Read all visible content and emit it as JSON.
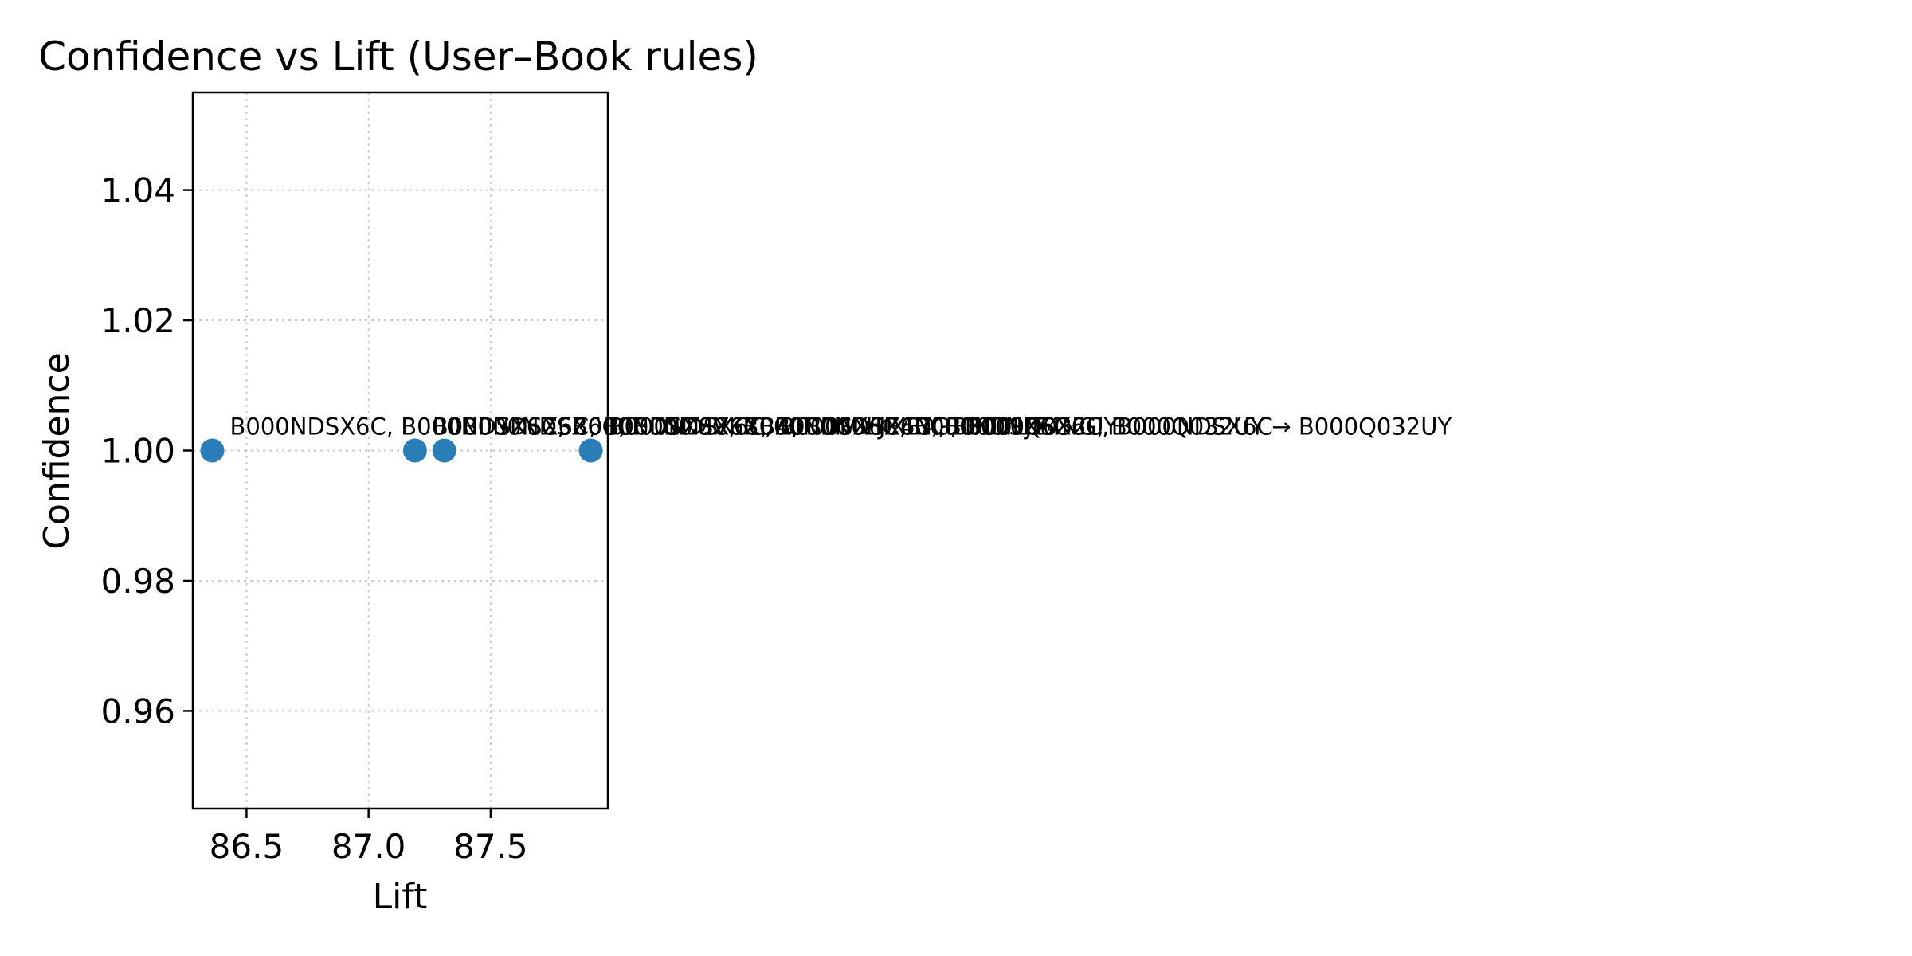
{
  "chart_data": {
    "type": "scatter",
    "title": "Confidence vs Lift (User–Book rules)",
    "xlabel": "Lift",
    "ylabel": "Confidence",
    "xlim": [
      86.28,
      87.98
    ],
    "ylim": [
      0.945,
      1.055
    ],
    "xticks": [
      86.5,
      87.0,
      87.5
    ],
    "xtick_labels": [
      "86.5",
      "87.0",
      "87.5"
    ],
    "yticks": [
      0.96,
      0.98,
      1.0,
      1.02,
      1.04
    ],
    "ytick_labels": [
      "0.96",
      "0.98",
      "1.00",
      "1.02",
      "1.04"
    ],
    "grid": true,
    "marker_color": "#1f77b4",
    "points": [
      {
        "x": 86.36,
        "y": 1.0,
        "label": "B000NDSX6C, B000NDSX6C, B000NDSX6C, B000NDSX6C, B000NDSX6C"
      },
      {
        "x": 87.19,
        "y": 1.0,
        "label": "B000NDSX6C, B000NDSX6C, B000NDSX6C, B000NDSX6C, B000NDSX6C"
      },
      {
        "x": 87.31,
        "y": 1.0,
        "label": "B000NDSX6C, B000MVKXBA, B000LJE4NG, B000Q032UY"
      },
      {
        "x": 87.91,
        "y": 1.0,
        "label": "B000NDSX6C, B000MVKXBA, B000LJE4NG, B000Q032UY → B000Q032UY"
      }
    ]
  }
}
